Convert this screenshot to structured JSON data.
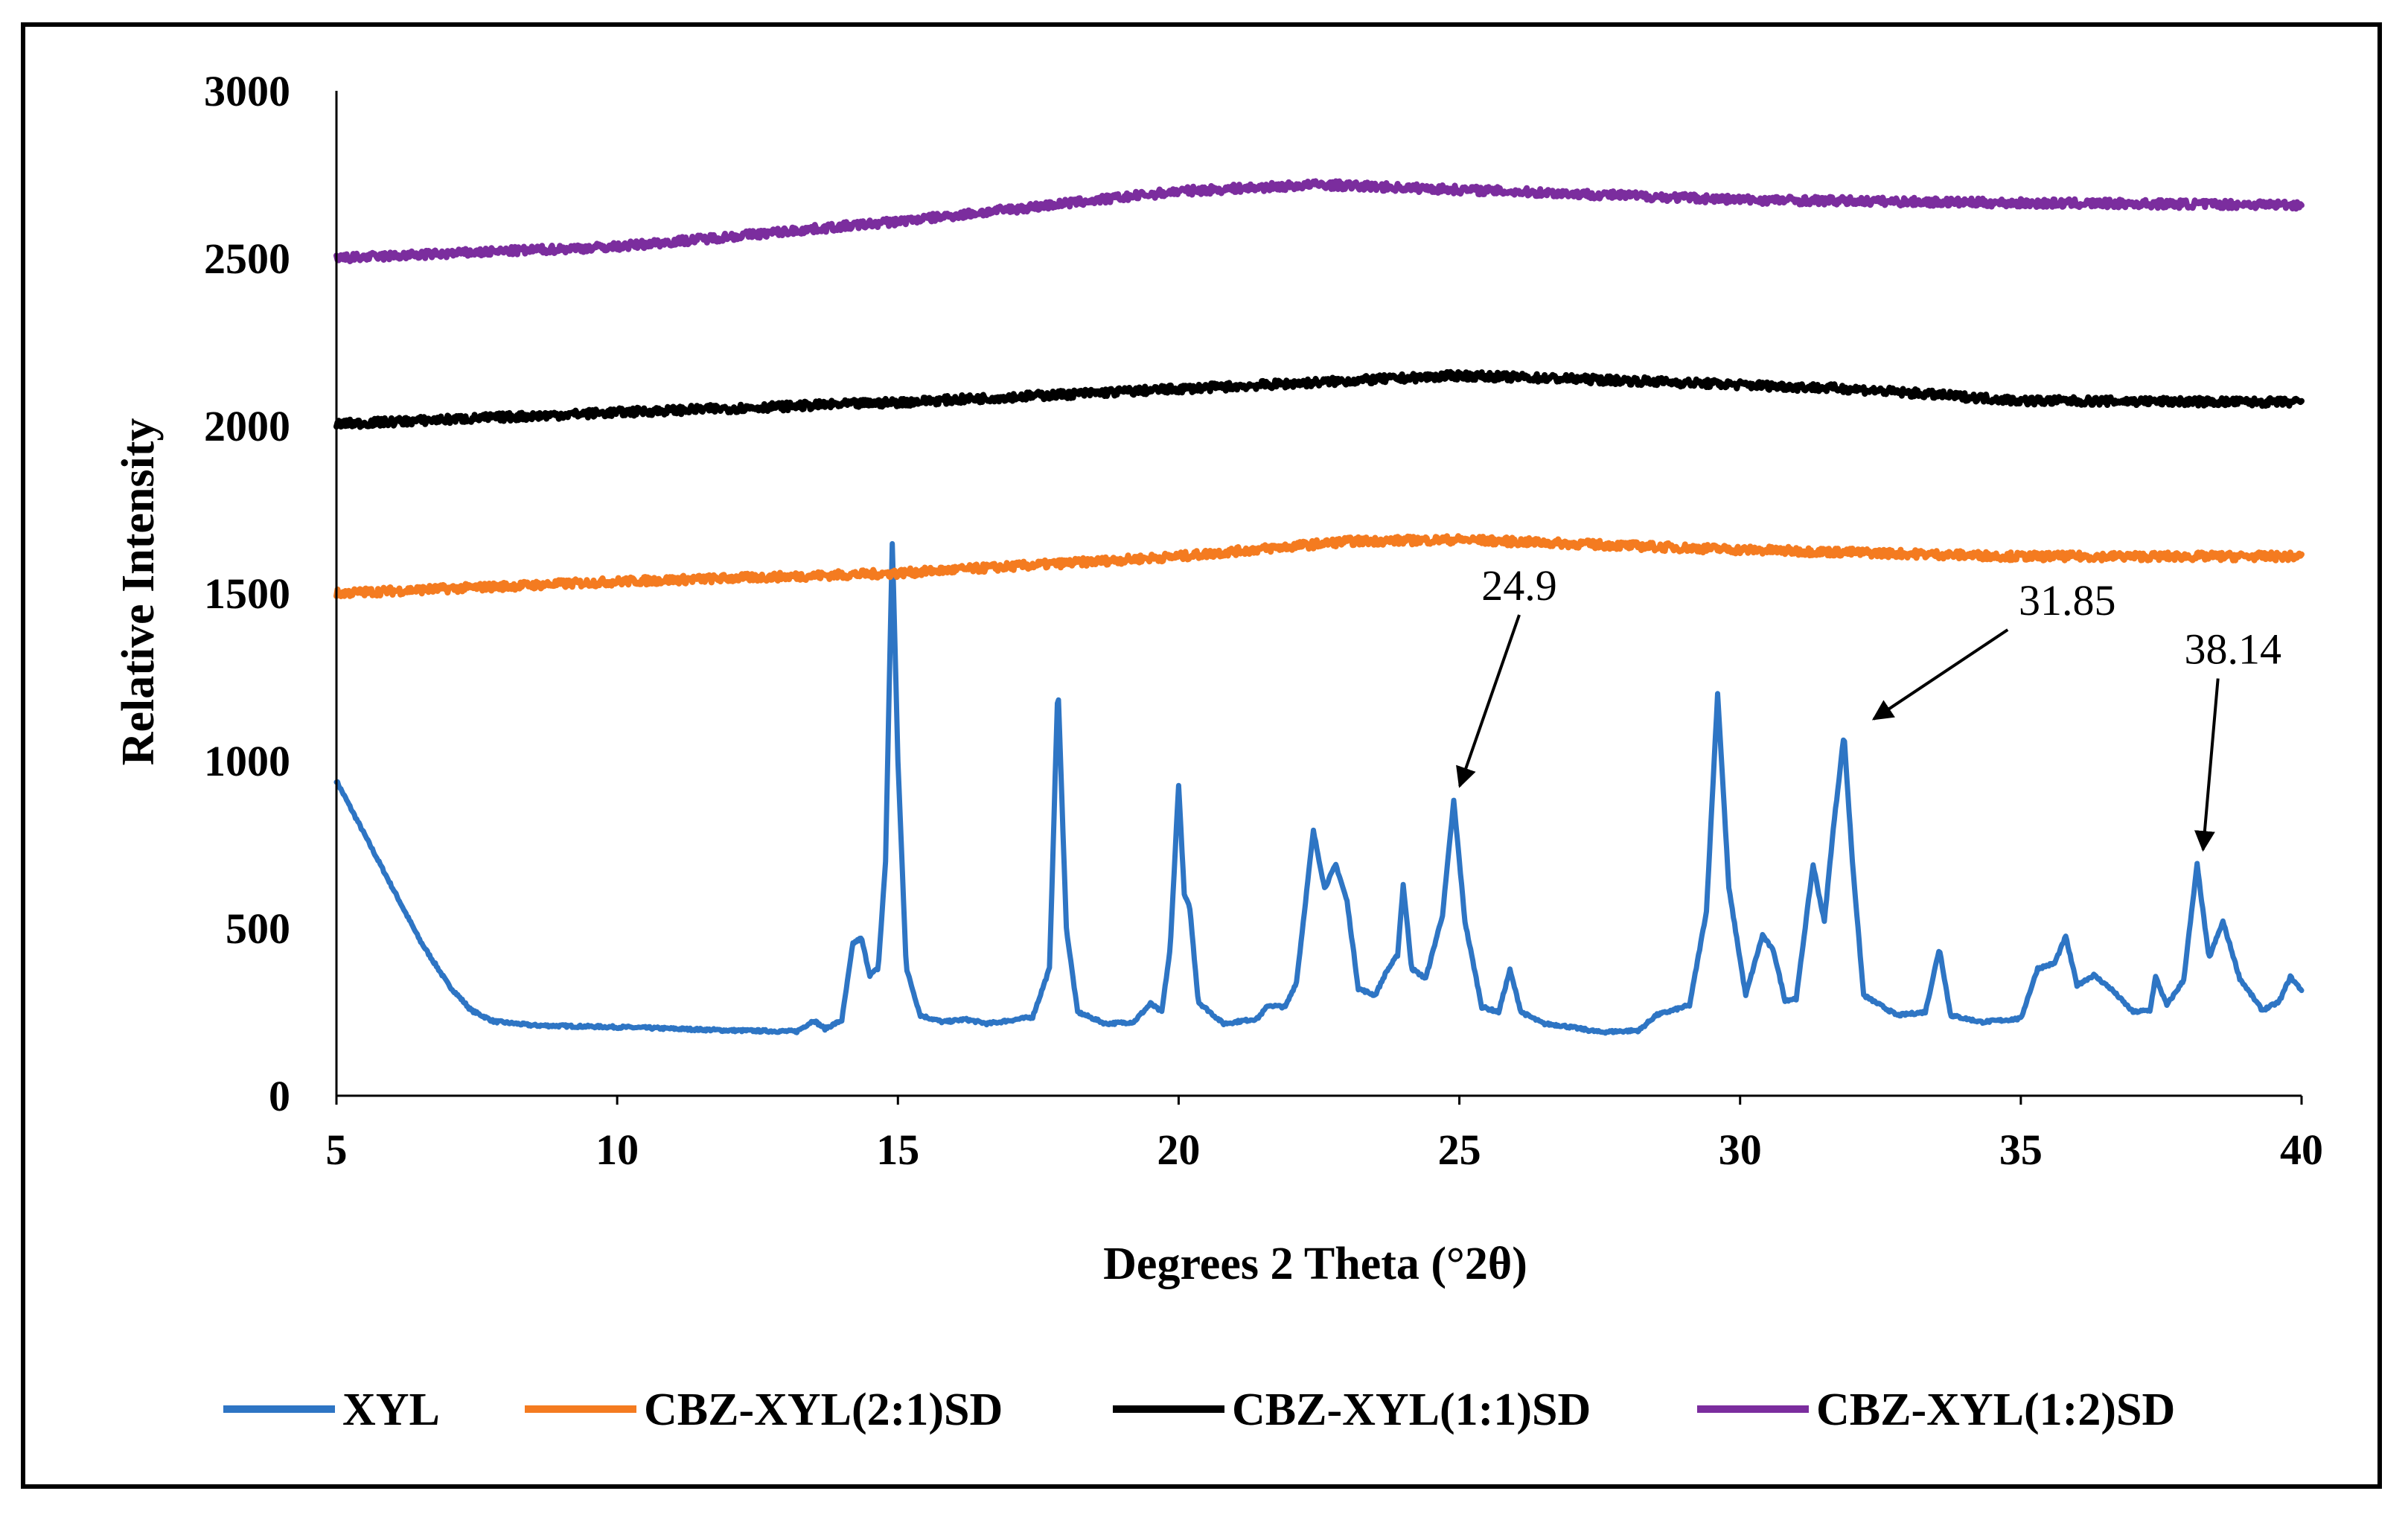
{
  "chart_data": {
    "type": "line",
    "title": "",
    "xlabel": "Degrees 2 Theta (°2θ)",
    "ylabel": "Relative Intensity",
    "xlim": [
      5,
      40
    ],
    "ylim": [
      0,
      3000
    ],
    "x_ticks": [
      5,
      10,
      15,
      20,
      25,
      30,
      35,
      40
    ],
    "y_ticks": [
      0,
      500,
      1000,
      1500,
      2000,
      2500,
      3000
    ],
    "x_tick_labels": [
      "5",
      "10",
      "15",
      "20",
      "25",
      "30",
      "35",
      "40"
    ],
    "y_tick_labels": [
      "0",
      "500",
      "1000",
      "1500",
      "2000",
      "2500",
      "3000"
    ],
    "grid": false,
    "legend_position": "bottom",
    "series": [
      {
        "name": "XYL",
        "color": "#2E75C4",
        "noise": 4,
        "points": [
          [
            5.0,
            940
          ],
          [
            5.5,
            780
          ],
          [
            6.0,
            620
          ],
          [
            6.5,
            460
          ],
          [
            7.0,
            330
          ],
          [
            7.4,
            255
          ],
          [
            7.8,
            222
          ],
          [
            8.5,
            210
          ],
          [
            10.0,
            205
          ],
          [
            12.0,
            195
          ],
          [
            13.2,
            192
          ],
          [
            13.5,
            225
          ],
          [
            13.7,
            200
          ],
          [
            14.0,
            225
          ],
          [
            14.2,
            455
          ],
          [
            14.35,
            470
          ],
          [
            14.5,
            360
          ],
          [
            14.65,
            380
          ],
          [
            14.78,
            700
          ],
          [
            14.9,
            1650
          ],
          [
            15.0,
            1000
          ],
          [
            15.15,
            380
          ],
          [
            15.4,
            240
          ],
          [
            15.8,
            220
          ],
          [
            16.2,
            228
          ],
          [
            16.6,
            215
          ],
          [
            17.4,
            235
          ],
          [
            17.7,
            380
          ],
          [
            17.85,
            1230
          ],
          [
            18.0,
            500
          ],
          [
            18.2,
            250
          ],
          [
            18.7,
            215
          ],
          [
            19.2,
            220
          ],
          [
            19.5,
            275
          ],
          [
            19.7,
            250
          ],
          [
            19.85,
            440
          ],
          [
            20.0,
            930
          ],
          [
            20.1,
            600
          ],
          [
            20.2,
            560
          ],
          [
            20.35,
            280
          ],
          [
            20.8,
            215
          ],
          [
            21.4,
            230
          ],
          [
            21.6,
            270
          ],
          [
            21.9,
            265
          ],
          [
            22.1,
            340
          ],
          [
            22.4,
            790
          ],
          [
            22.6,
            620
          ],
          [
            22.8,
            690
          ],
          [
            23.0,
            580
          ],
          [
            23.2,
            320
          ],
          [
            23.5,
            300
          ],
          [
            23.7,
            370
          ],
          [
            23.9,
            420
          ],
          [
            24.0,
            630
          ],
          [
            24.15,
            380
          ],
          [
            24.4,
            350
          ],
          [
            24.7,
            540
          ],
          [
            24.9,
            880
          ],
          [
            25.1,
            520
          ],
          [
            25.4,
            265
          ],
          [
            25.7,
            250
          ],
          [
            25.9,
            375
          ],
          [
            26.1,
            250
          ],
          [
            26.5,
            215
          ],
          [
            26.8,
            210
          ],
          [
            27.5,
            190
          ],
          [
            28.2,
            195
          ],
          [
            28.5,
            240
          ],
          [
            28.7,
            250
          ],
          [
            29.1,
            270
          ],
          [
            29.4,
            550
          ],
          [
            29.6,
            1200
          ],
          [
            29.8,
            620
          ],
          [
            30.1,
            300
          ],
          [
            30.4,
            480
          ],
          [
            30.6,
            430
          ],
          [
            30.8,
            285
          ],
          [
            31.0,
            290
          ],
          [
            31.3,
            690
          ],
          [
            31.5,
            520
          ],
          [
            31.65,
            780
          ],
          [
            31.85,
            1080
          ],
          [
            32.0,
            700
          ],
          [
            32.2,
            300
          ],
          [
            32.8,
            240
          ],
          [
            33.3,
            250
          ],
          [
            33.55,
            440
          ],
          [
            33.75,
            240
          ],
          [
            34.3,
            220
          ],
          [
            35.0,
            230
          ],
          [
            35.3,
            380
          ],
          [
            35.6,
            395
          ],
          [
            35.8,
            475
          ],
          [
            36.0,
            330
          ],
          [
            36.3,
            360
          ],
          [
            36.6,
            320
          ],
          [
            37.0,
            250
          ],
          [
            37.3,
            255
          ],
          [
            37.4,
            355
          ],
          [
            37.6,
            270
          ],
          [
            37.9,
            345
          ],
          [
            38.14,
            690
          ],
          [
            38.35,
            410
          ],
          [
            38.6,
            520
          ],
          [
            38.9,
            350
          ],
          [
            39.3,
            255
          ],
          [
            39.6,
            280
          ],
          [
            39.8,
            355
          ],
          [
            40.0,
            315
          ]
        ]
      },
      {
        "name": "CBZ-XYL(2:1)SD",
        "color": "#F47B20",
        "noise": 12,
        "points": [
          [
            5,
            1500
          ],
          [
            10,
            1535
          ],
          [
            15,
            1560
          ],
          [
            20,
            1610
          ],
          [
            23,
            1655
          ],
          [
            25,
            1660
          ],
          [
            30,
            1630
          ],
          [
            35,
            1610
          ],
          [
            40,
            1610
          ]
        ]
      },
      {
        "name": "CBZ-XYL(1:1)SD",
        "color": "#000000",
        "noise": 12,
        "points": [
          [
            5,
            2005
          ],
          [
            10,
            2040
          ],
          [
            15,
            2070
          ],
          [
            20,
            2110
          ],
          [
            25,
            2150
          ],
          [
            28,
            2135
          ],
          [
            32,
            2110
          ],
          [
            35,
            2075
          ],
          [
            40,
            2070
          ]
        ]
      },
      {
        "name": "CBZ-XYL(1:2)SD",
        "color": "#7B2D9E",
        "noise": 12,
        "points": [
          [
            5,
            2500
          ],
          [
            10,
            2535
          ],
          [
            15,
            2610
          ],
          [
            20,
            2700
          ],
          [
            22.5,
            2720
          ],
          [
            25,
            2705
          ],
          [
            30,
            2675
          ],
          [
            35,
            2665
          ],
          [
            40,
            2660
          ]
        ]
      }
    ],
    "annotations": [
      {
        "label": "24.9",
        "x": 24.9,
        "y": 880
      },
      {
        "label": "31.85",
        "x": 31.85,
        "y": 1080
      },
      {
        "label": "38.14",
        "x": 38.14,
        "y": 690
      }
    ]
  }
}
